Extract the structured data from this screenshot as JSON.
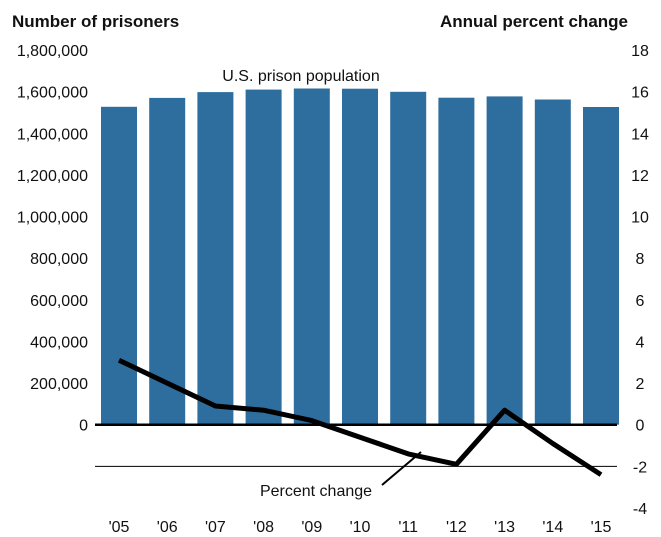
{
  "chart_data": {
    "type": "bar",
    "left_axis_title": "Number of prisoners",
    "right_axis_title": "Annual percent change",
    "categories": [
      "'05",
      "'06",
      "'07",
      "'08",
      "'09",
      "'10",
      "'11",
      "'12",
      "'13",
      "'14",
      "'15"
    ],
    "series": [
      {
        "name": "U.S. prison population",
        "type": "bar",
        "axis": "left",
        "color": "#2e6e9e",
        "values": [
          1527000,
          1570000,
          1598000,
          1610000,
          1615000,
          1614000,
          1599000,
          1571000,
          1577000,
          1562000,
          1526000
        ]
      },
      {
        "name": "Percent change",
        "type": "line",
        "axis": "right",
        "color": "#000000",
        "values": [
          3.1,
          2.0,
          0.9,
          0.7,
          0.2,
          -0.6,
          -1.4,
          -1.9,
          0.7,
          -0.9,
          -2.4
        ]
      }
    ],
    "left_ylim": [
      -400000,
      1800000
    ],
    "left_ticks": [
      "1,800,000",
      "1,600,000",
      "1,400,000",
      "1,200,000",
      "1,000,000",
      "800,000",
      "600,000",
      "400,000",
      "200,000",
      "0"
    ],
    "left_tick_values": [
      1800000,
      1600000,
      1400000,
      1200000,
      1000000,
      800000,
      600000,
      400000,
      200000,
      0
    ],
    "right_ylim": [
      -4,
      18
    ],
    "right_ticks": [
      "18",
      "16",
      "14",
      "12",
      "10",
      "8",
      "6",
      "4",
      "2",
      "0",
      "-2",
      "-4"
    ],
    "right_tick_values": [
      18,
      16,
      14,
      12,
      10,
      8,
      6,
      4,
      2,
      0,
      -2,
      -4
    ],
    "grid": false,
    "zero_line": true,
    "gridline_at_right_value": -2
  }
}
